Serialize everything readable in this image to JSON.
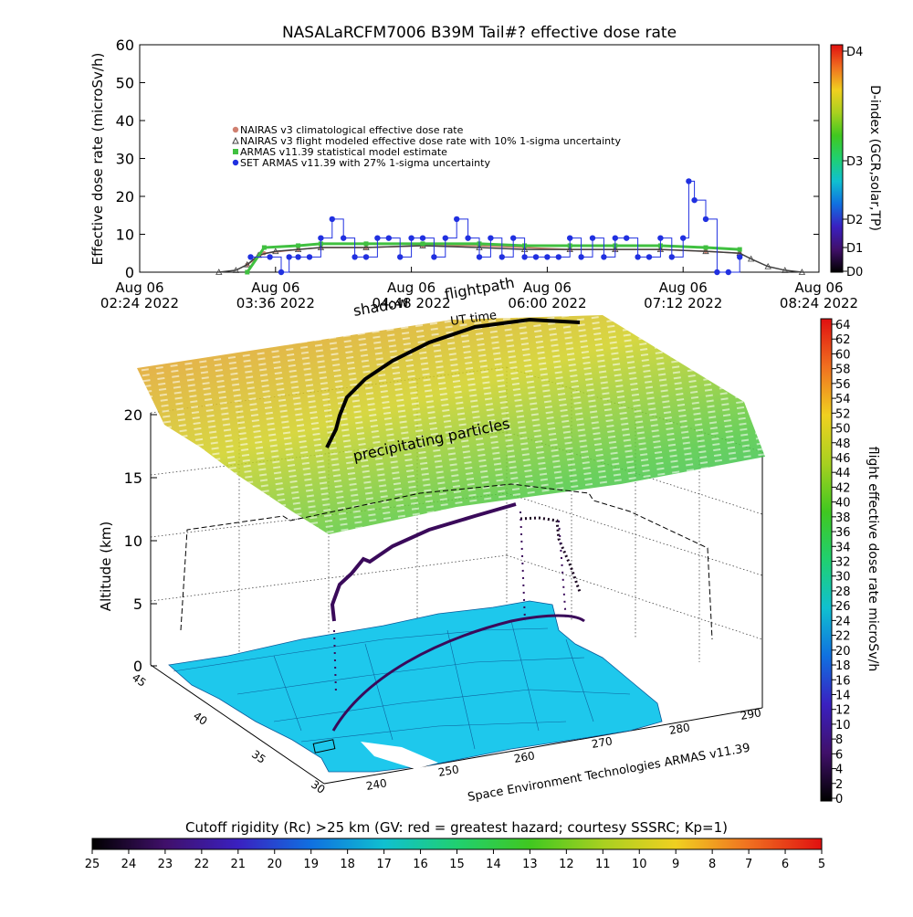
{
  "title": "NASALaRCFM7006  B39M Tail#? effective dose rate",
  "timeseries": {
    "ylabel": "Effective dose rate (microSv/h)",
    "yticks": [
      "60",
      "50",
      "40",
      "30",
      "20",
      "10",
      "0"
    ],
    "xticks": [
      {
        "line1": "Aug 06",
        "line2": "02:24 2022"
      },
      {
        "line1": "Aug 06",
        "line2": "03:36 2022"
      },
      {
        "line1": "Aug 06",
        "line2": "04:48 2022"
      },
      {
        "line1": "Aug 06",
        "line2": "06:00 2022"
      },
      {
        "line1": "Aug 06",
        "line2": "07:12 2022"
      },
      {
        "line1": "Aug 06",
        "line2": "08:24 2022"
      }
    ],
    "legend": [
      {
        "label": "NAIRAS v3 climatological effective dose rate",
        "color": "#d08070"
      },
      {
        "label": "NAIRAS v3 flight modeled effective dose rate with 10% 1-sigma uncertainty",
        "color": "#404040"
      },
      {
        "label": "ARMAS v11.39 statistical model estimate",
        "color": "#40c040"
      },
      {
        "label": "SET ARMAS v11.39 with 27% 1-sigma uncertainty",
        "color": "#2030e0"
      }
    ]
  },
  "dindex": {
    "label": "D-index (GCR,solar,TP)",
    "ticks": [
      "D4",
      "D3",
      "D2",
      "D1",
      "D0"
    ]
  },
  "globe": {
    "zlabel": "Altitude (km)",
    "zticks": [
      "20",
      "15",
      "10",
      "5",
      "0"
    ],
    "lat_ticks": [
      "45",
      "40",
      "35",
      "30"
    ],
    "lon_ticks": [
      "240",
      "250",
      "260",
      "270",
      "280",
      "290"
    ],
    "labels": {
      "shadow": "shadow",
      "flightpath": "flightpath",
      "ut_time": "UT time",
      "particles": "precipitating particles",
      "credit": "Space Environment Technologies ARMAS v11.39"
    }
  },
  "dose_colorbar": {
    "label": "flight effective dose rate microSv/h",
    "ticks": [
      "64",
      "62",
      "60",
      "58",
      "56",
      "54",
      "52",
      "50",
      "48",
      "46",
      "44",
      "42",
      "40",
      "38",
      "36",
      "34",
      "32",
      "30",
      "28",
      "26",
      "24",
      "22",
      "20",
      "18",
      "16",
      "14",
      "12",
      "10",
      "8",
      "6",
      "4",
      "2",
      "0"
    ]
  },
  "cutoff_colorbar": {
    "title": "Cutoff rigidity (Rc) >25 km (GV: red = greatest hazard; courtesy SSSRC; Kp=1)",
    "ticks": [
      "25",
      "24",
      "23",
      "22",
      "21",
      "20",
      "19",
      "18",
      "17",
      "16",
      "15",
      "14",
      "13",
      "12",
      "11",
      "10",
      "9",
      "8",
      "7",
      "6",
      "5"
    ]
  },
  "chart_data": {
    "type": "line",
    "title": "NASALaRCFM7006  B39M Tail#? effective dose rate",
    "ylabel": "Effective dose rate (microSv/h)",
    "ylim": [
      0,
      60
    ],
    "x_unit": "hours UTC, Aug 06 2022",
    "xlim": [
      2.4,
      8.4
    ],
    "series": [
      {
        "name": "NAIRAS v3 climatological effective dose rate",
        "x": [
          3.35,
          3.5,
          3.8,
          4.0,
          4.4,
          4.9,
          5.4,
          5.8,
          6.2,
          6.6,
          7.0,
          7.4,
          7.7
        ],
        "values": [
          2,
          5,
          6,
          6.5,
          6.5,
          7,
          7,
          6.5,
          6,
          6,
          6,
          5.5,
          5
        ]
      },
      {
        "name": "NAIRAS v3 flight modeled effective dose rate with 10% 1-sigma uncertainty",
        "x": [
          3.1,
          3.25,
          3.35,
          3.45,
          3.6,
          3.8,
          4.0,
          4.4,
          4.9,
          5.4,
          5.8,
          6.2,
          6.6,
          7.0,
          7.4,
          7.7,
          7.8,
          7.95,
          8.1,
          8.25
        ],
        "values": [
          0,
          0.5,
          2,
          4.5,
          5.5,
          6,
          6.5,
          6.5,
          7,
          6.5,
          6,
          6,
          6,
          6,
          5.5,
          5,
          3.5,
          1.5,
          0.5,
          0
        ]
      },
      {
        "name": "ARMAS v11.39 statistical model estimate",
        "x": [
          3.35,
          3.5,
          3.8,
          4.0,
          4.4,
          4.9,
          5.4,
          5.8,
          6.2,
          6.6,
          7.0,
          7.4,
          7.7
        ],
        "values": [
          0,
          6.5,
          7,
          7.5,
          7.5,
          7.5,
          7.5,
          7,
          7,
          7,
          7,
          6.5,
          6
        ]
      },
      {
        "name": "SET ARMAS v11.39 with 27% 1-sigma uncertainty",
        "x": [
          3.38,
          3.55,
          3.65,
          3.72,
          3.8,
          3.9,
          4.0,
          4.1,
          4.2,
          4.3,
          4.4,
          4.5,
          4.6,
          4.7,
          4.8,
          4.9,
          5.0,
          5.1,
          5.2,
          5.3,
          5.4,
          5.5,
          5.6,
          5.7,
          5.8,
          5.9,
          6.0,
          6.1,
          6.2,
          6.3,
          6.4,
          6.5,
          6.6,
          6.7,
          6.8,
          6.9,
          7.0,
          7.1,
          7.2,
          7.25,
          7.3,
          7.4,
          7.5,
          7.6,
          7.7
        ],
        "values": [
          4,
          4,
          0,
          4,
          4,
          4,
          9,
          14,
          9,
          4,
          4,
          9,
          9,
          4,
          9,
          9,
          4,
          9,
          14,
          9,
          4,
          9,
          4,
          9,
          4,
          4,
          4,
          4,
          9,
          4,
          9,
          4,
          9,
          9,
          4,
          4,
          9,
          4,
          9,
          24,
          19,
          14,
          0,
          0,
          4
        ]
      }
    ]
  }
}
